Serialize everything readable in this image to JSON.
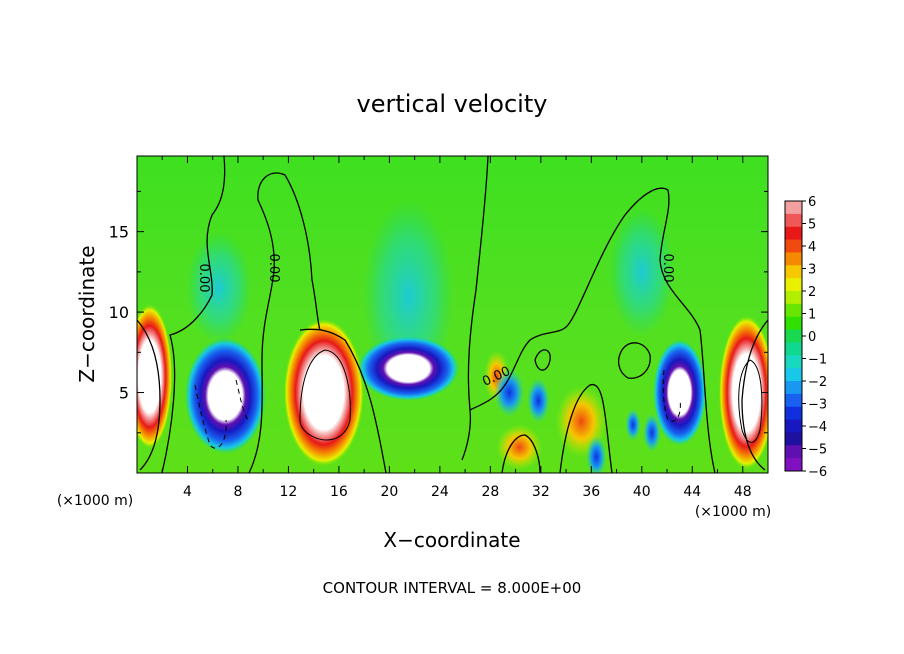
{
  "chart_data": {
    "type": "heatmap",
    "title": "vertical velocity",
    "xlabel": "X−coordinate",
    "ylabel": "Z−coordinate",
    "x_unit_left": "(×1000 m)",
    "x_unit_right": "(×1000 m)",
    "footer": "CONTOUR INTERVAL = 8.000E+00",
    "xlim": [
      0,
      50
    ],
    "ylim": [
      0,
      19.7
    ],
    "x_ticks": [
      "4",
      "8",
      "12",
      "16",
      "20",
      "24",
      "28",
      "32",
      "36",
      "40",
      "44",
      "48"
    ],
    "y_ticks": [
      "5",
      "10",
      "15"
    ],
    "contour_label": "0.00",
    "colorbar": {
      "ticks": [
        "6",
        "5",
        "4",
        "3",
        "2",
        "1",
        "0",
        "−1",
        "−2",
        "−3",
        "−4",
        "−5",
        "−6"
      ],
      "colors": [
        "#f4a0a0",
        "#f05858",
        "#e81818",
        "#f04a10",
        "#f58a00",
        "#f5c800",
        "#e9f000",
        "#b2ee00",
        "#66e600",
        "#2fe000",
        "#18d850",
        "#10d890",
        "#18d8c0",
        "#18c8e8",
        "#1898f0",
        "#1860f0",
        "#1030e0",
        "#1818c0",
        "#2010a0",
        "#6010b0",
        "#8010c0"
      ]
    },
    "background_color": "#52e020",
    "features": [
      {
        "kind": "updraft",
        "x": 1.0,
        "z": 6.0,
        "rx": 1.8,
        "rz": 4.5
      },
      {
        "kind": "updraft",
        "x": 14.8,
        "z": 5.0,
        "rx": 3.2,
        "rz": 4.6
      },
      {
        "kind": "updraft",
        "x": 48.3,
        "z": 5.0,
        "rx": 2.2,
        "rz": 4.8
      },
      {
        "kind": "downdraft",
        "x": 7.0,
        "z": 4.8,
        "rx": 3.2,
        "rz": 3.6
      },
      {
        "kind": "downdraft",
        "x": 21.5,
        "z": 6.5,
        "rx": 4.0,
        "rz": 2.0
      },
      {
        "kind": "downdraft",
        "x": 43.0,
        "z": 5.0,
        "rx": 2.1,
        "rz": 3.3
      }
    ]
  }
}
